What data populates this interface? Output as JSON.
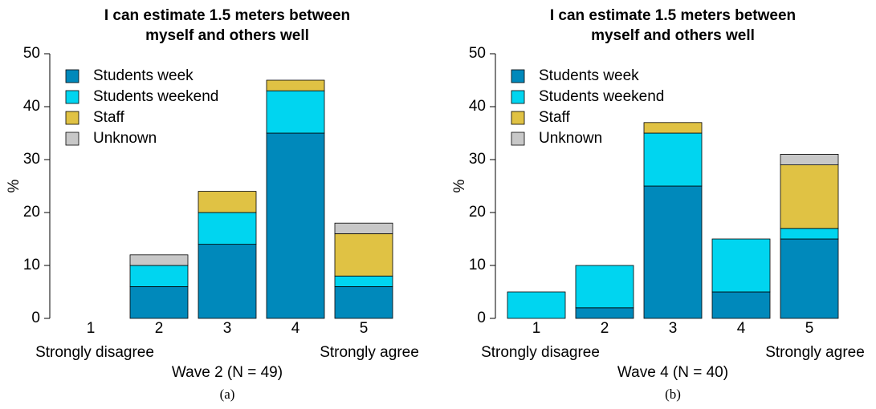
{
  "chart_data": [
    {
      "type": "stacked_bar",
      "title": [
        "I can estimate 1.5 meters between",
        "myself and others well"
      ],
      "ylabel": "%",
      "xlabel": "Wave 2 (N = 49)",
      "annotations": [
        "Strongly disagree",
        "Strongly agree"
      ],
      "caption": "(a)",
      "categories": [
        "1",
        "2",
        "3",
        "4",
        "5"
      ],
      "series": [
        {
          "name": "Students week",
          "color": "#0089bb",
          "values": [
            0,
            6,
            14,
            35,
            6
          ]
        },
        {
          "name": "Students weekend",
          "color": "#00d5f0",
          "values": [
            0,
            4,
            6,
            8,
            2
          ]
        },
        {
          "name": "Staff",
          "color": "#e0c244",
          "values": [
            0,
            0,
            4,
            2,
            8
          ]
        },
        {
          "name": "Unknown",
          "color": "#c8c8c8",
          "values": [
            0,
            2,
            0,
            0,
            2
          ]
        }
      ],
      "ylim": [
        0,
        50
      ],
      "yticks": [
        0,
        10,
        20,
        30,
        40,
        50
      ],
      "legend": "top-left"
    },
    {
      "type": "stacked_bar",
      "title": [
        "I can estimate 1.5 meters between",
        "myself and others well"
      ],
      "ylabel": "%",
      "xlabel": "Wave 4 (N = 40)",
      "annotations": [
        "Strongly disagree",
        "Strongly agree"
      ],
      "caption": "(b)",
      "categories": [
        "1",
        "2",
        "3",
        "4",
        "5"
      ],
      "series": [
        {
          "name": "Students week",
          "color": "#0089bb",
          "values": [
            0,
            2,
            25,
            5,
            15
          ]
        },
        {
          "name": "Students weekend",
          "color": "#00d5f0",
          "values": [
            5,
            8,
            10,
            10,
            2
          ]
        },
        {
          "name": "Staff",
          "color": "#e0c244",
          "values": [
            0,
            0,
            2,
            0,
            12
          ]
        },
        {
          "name": "Unknown",
          "color": "#c8c8c8",
          "values": [
            0,
            0,
            0,
            0,
            2
          ]
        }
      ],
      "ylim": [
        0,
        50
      ],
      "yticks": [
        0,
        10,
        20,
        30,
        40,
        50
      ],
      "legend": "top-left"
    }
  ]
}
